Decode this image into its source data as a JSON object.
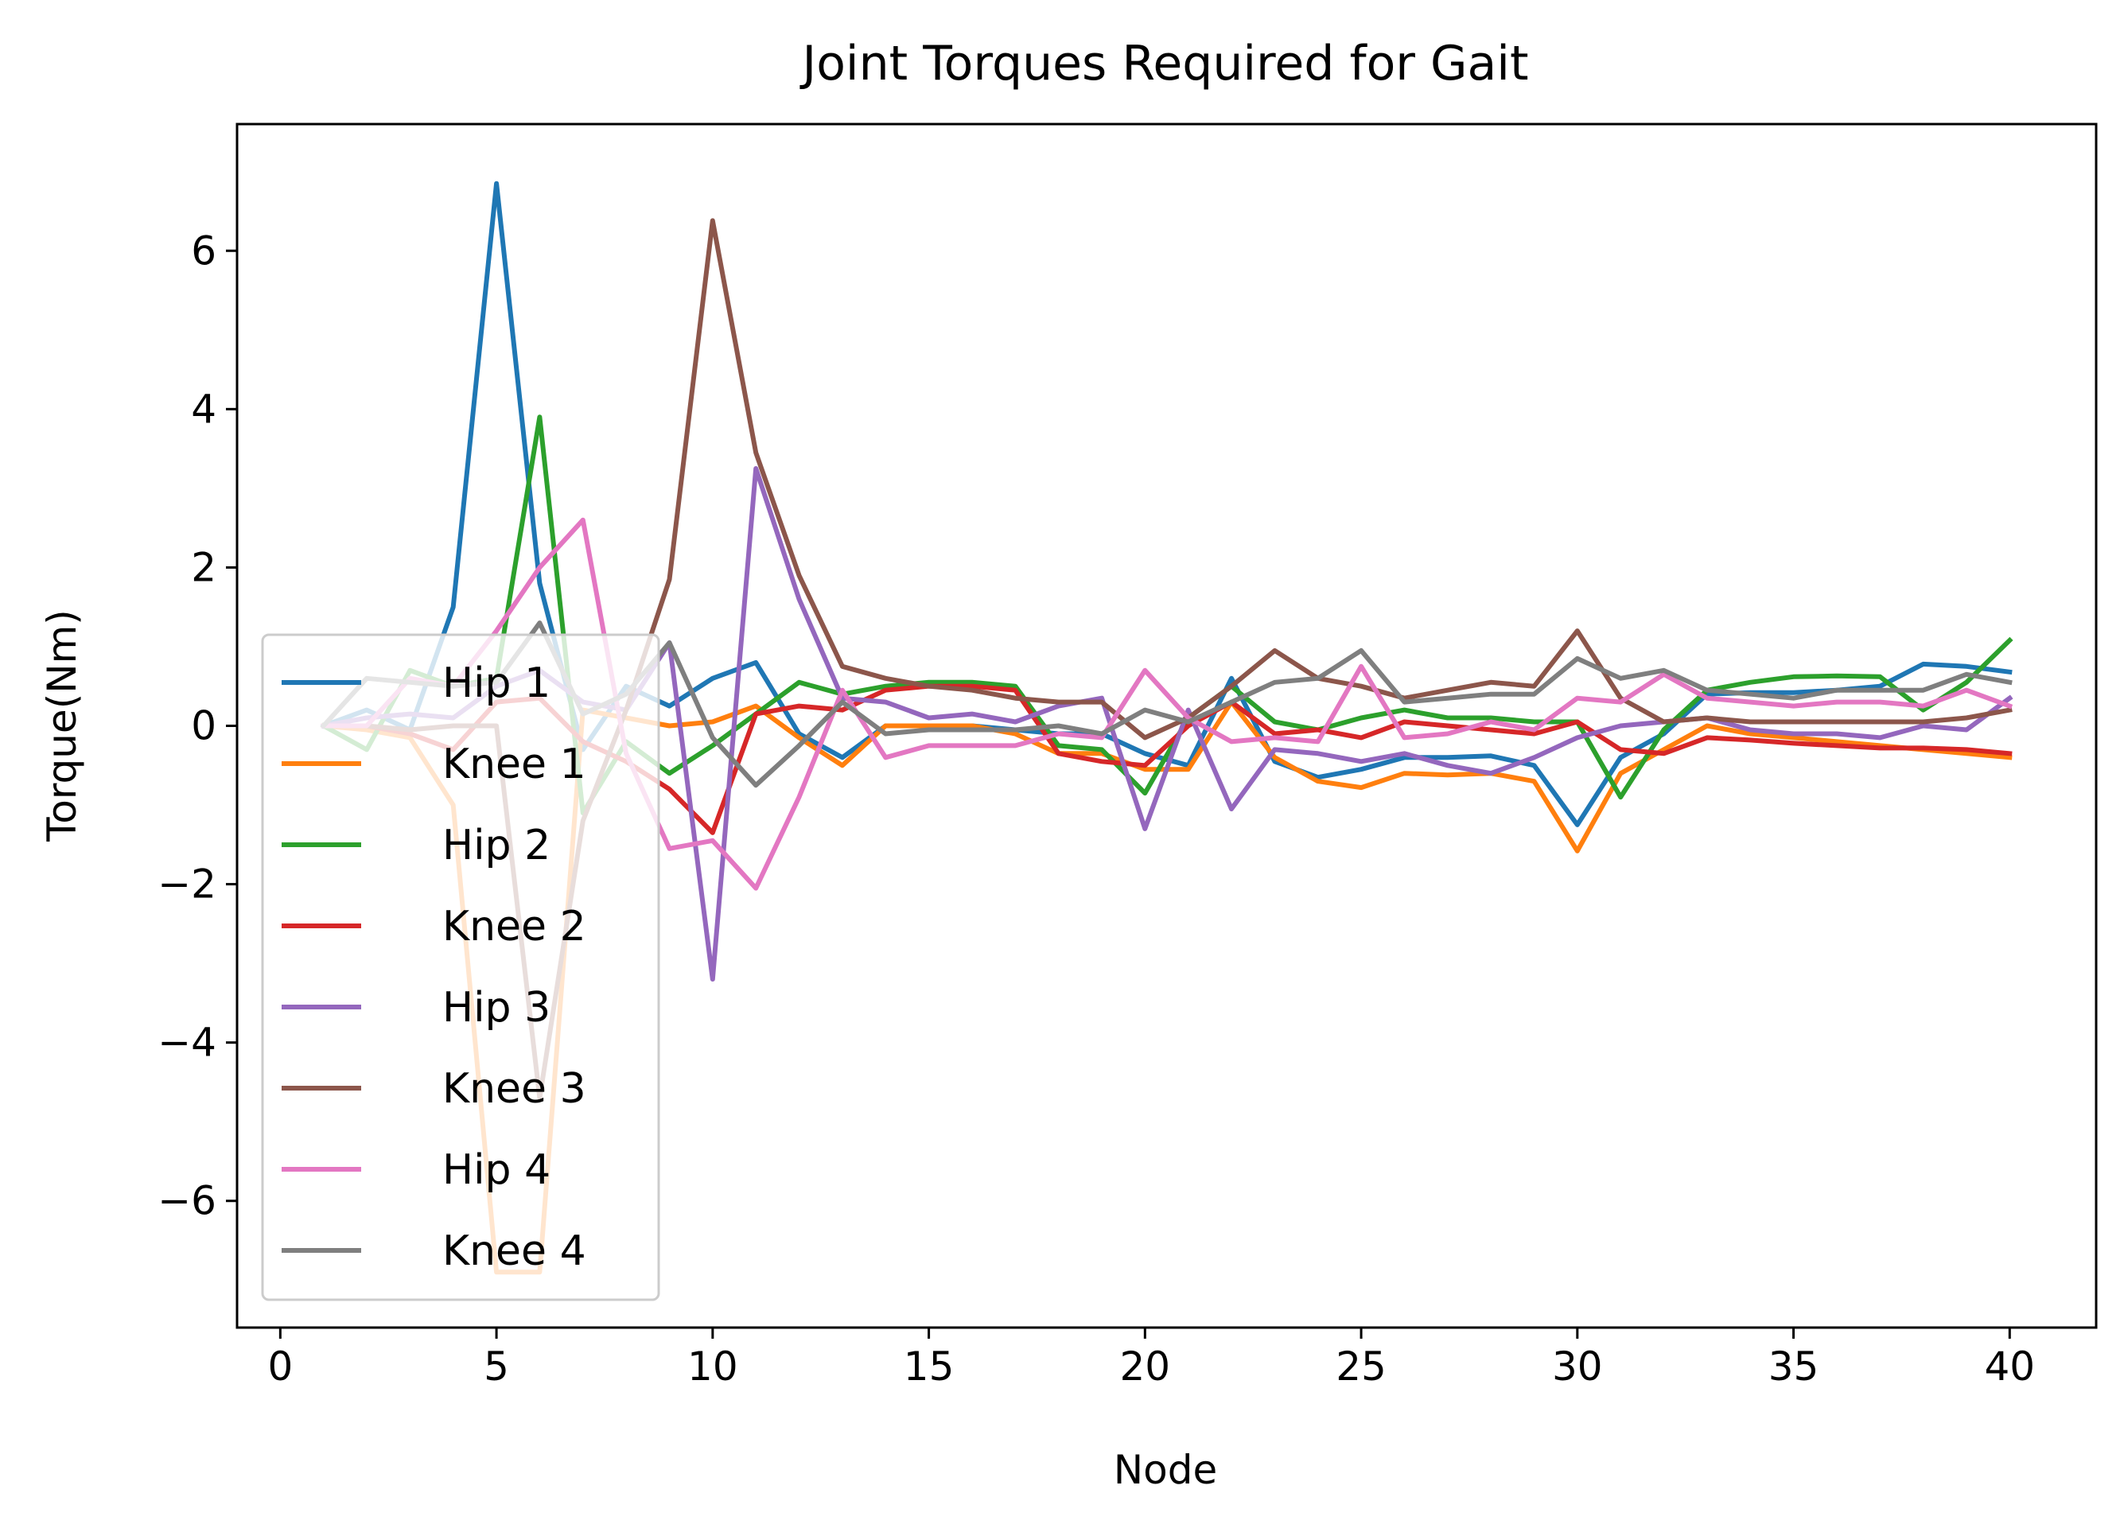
{
  "chart_data": {
    "type": "line",
    "title": "Joint Torques Required for Gait",
    "xlabel": "Node",
    "ylabel": "Torque(Nm)",
    "xlim": [
      -1,
      42
    ],
    "ylim": [
      -7.6,
      7.6
    ],
    "xticks": [
      0,
      5,
      10,
      15,
      20,
      25,
      30,
      35,
      40
    ],
    "xtick_labels": [
      "0",
      "5",
      "10",
      "15",
      "20",
      "25",
      "30",
      "35",
      "40"
    ],
    "yticks": [
      -6,
      -4,
      -2,
      0,
      2,
      4,
      6
    ],
    "ytick_labels": [
      "−6",
      "−4",
      "−2",
      "0",
      "2",
      "4",
      "6"
    ],
    "grid": false,
    "legend_position": "lower-left",
    "x": [
      1,
      2,
      3,
      4,
      5,
      6,
      7,
      8,
      9,
      10,
      11,
      12,
      13,
      14,
      15,
      16,
      17,
      18,
      19,
      20,
      21,
      22,
      23,
      24,
      25,
      26,
      27,
      28,
      29,
      30,
      31,
      32,
      33,
      34,
      35,
      36,
      37,
      38,
      39,
      40
    ],
    "series": [
      {
        "name": "Hip 1",
        "color": "#1f77b4",
        "values": [
          0,
          0.2,
          -0.05,
          1.5,
          6.85,
          1.8,
          -0.3,
          0.5,
          0.25,
          0.6,
          0.8,
          -0.1,
          -0.4,
          0,
          0,
          0,
          -0.05,
          -0.1,
          -0.1,
          -0.35,
          -0.5,
          0.6,
          -0.45,
          -0.65,
          -0.55,
          -0.4,
          -0.4,
          -0.38,
          -0.5,
          -1.25,
          -0.4,
          -0.1,
          0.4,
          0.42,
          0.42,
          0.45,
          0.5,
          0.78,
          0.75,
          0.68
        ]
      },
      {
        "name": "Knee 1",
        "color": "#ff7f0e",
        "values": [
          0,
          -0.05,
          -0.15,
          -1,
          -6.9,
          -6.9,
          0.2,
          0.1,
          0,
          0.05,
          0.25,
          -0.15,
          -0.5,
          0,
          0,
          0,
          -0.1,
          -0.35,
          -0.35,
          -0.55,
          -0.55,
          0.3,
          -0.4,
          -0.7,
          -0.78,
          -0.6,
          -0.62,
          -0.6,
          -0.7,
          -1.58,
          -0.6,
          -0.3,
          0,
          -0.1,
          -0.15,
          -0.2,
          -0.25,
          -0.3,
          -0.35,
          -0.4
        ]
      },
      {
        "name": "Hip 2",
        "color": "#2ca02c",
        "values": [
          0,
          -0.3,
          0.7,
          0.5,
          0.6,
          3.9,
          -1.1,
          -0.2,
          -0.6,
          -0.25,
          0.15,
          0.55,
          0.4,
          0.5,
          0.55,
          0.55,
          0.5,
          -0.25,
          -0.3,
          -0.85,
          0.1,
          0.5,
          0.05,
          -0.05,
          0.1,
          0.2,
          0.1,
          0.1,
          0.05,
          0.05,
          -0.9,
          -0.05,
          0.45,
          0.55,
          0.62,
          0.63,
          0.62,
          0.2,
          0.55,
          1.08
        ]
      },
      {
        "name": "Knee 2",
        "color": "#d62728",
        "values": [
          0,
          0,
          -0.1,
          -0.3,
          0.3,
          0.35,
          -0.2,
          -0.45,
          -0.8,
          -1.35,
          0.15,
          0.25,
          0.2,
          0.45,
          0.5,
          0.5,
          0.45,
          -0.35,
          -0.45,
          -0.5,
          0,
          0.3,
          -0.1,
          -0.05,
          -0.15,
          0.05,
          0,
          -0.05,
          -0.1,
          0.05,
          -0.3,
          -0.35,
          -0.15,
          -0.18,
          -0.22,
          -0.25,
          -0.28,
          -0.28,
          -0.3,
          -0.35
        ]
      },
      {
        "name": "Hip 3",
        "color": "#9467bd",
        "values": [
          0,
          0.1,
          0.15,
          0.1,
          0.5,
          0.7,
          0.3,
          0.2,
          1.05,
          -3.2,
          3.25,
          1.6,
          0.35,
          0.3,
          0.1,
          0.15,
          0.05,
          0.25,
          0.35,
          -1.3,
          0.2,
          -1.05,
          -0.3,
          -0.35,
          -0.45,
          -0.35,
          -0.5,
          -0.6,
          -0.4,
          -0.15,
          0,
          0.05,
          0.1,
          -0.05,
          -0.1,
          -0.1,
          -0.15,
          0,
          -0.05,
          0.35
        ]
      },
      {
        "name": "Knee 3",
        "color": "#8c564b",
        "values": [
          0,
          0,
          -0.05,
          0,
          0,
          -4.7,
          -1.2,
          0.2,
          1.85,
          6.38,
          3.45,
          1.9,
          0.75,
          0.6,
          0.5,
          0.45,
          0.35,
          0.3,
          0.3,
          -0.15,
          0.1,
          0.5,
          0.95,
          0.6,
          0.5,
          0.35,
          0.45,
          0.55,
          0.5,
          1.2,
          0.35,
          0.05,
          0.1,
          0.05,
          0.05,
          0.05,
          0.05,
          0.05,
          0.1,
          0.2
        ]
      },
      {
        "name": "Hip 4",
        "color": "#e377c2",
        "values": [
          0,
          0,
          0.6,
          0.5,
          1.2,
          2,
          2.6,
          -0.35,
          -1.55,
          -1.45,
          -2.05,
          -0.9,
          0.45,
          -0.4,
          -0.25,
          -0.25,
          -0.25,
          -0.1,
          -0.15,
          0.7,
          0.1,
          -0.2,
          -0.15,
          -0.2,
          0.75,
          -0.15,
          -0.1,
          0.05,
          -0.05,
          0.35,
          0.3,
          0.65,
          0.35,
          0.3,
          0.25,
          0.3,
          0.3,
          0.25,
          0.45,
          0.25
        ]
      },
      {
        "name": "Knee 4",
        "color": "#7f7f7f",
        "values": [
          0,
          0.6,
          0.55,
          0.5,
          0.55,
          1.3,
          0.15,
          0.4,
          1.05,
          -0.15,
          -0.75,
          -0.25,
          0.3,
          -0.1,
          -0.05,
          -0.05,
          -0.05,
          0,
          -0.1,
          0.2,
          0.05,
          0.3,
          0.55,
          0.6,
          0.95,
          0.3,
          0.35,
          0.4,
          0.4,
          0.85,
          0.6,
          0.7,
          0.45,
          0.4,
          0.35,
          0.45,
          0.45,
          0.45,
          0.65,
          0.55
        ]
      }
    ]
  }
}
